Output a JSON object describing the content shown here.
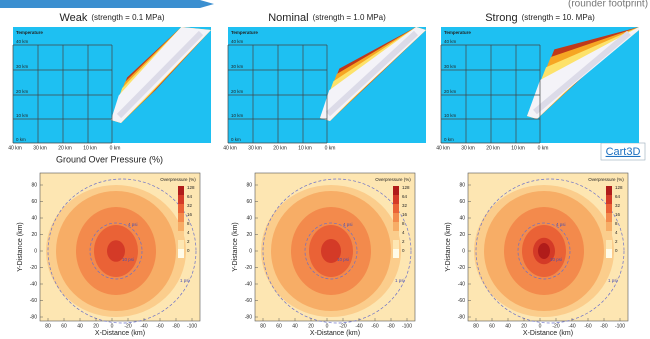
{
  "header": {
    "note": "(rounder footprint)"
  },
  "cases": [
    {
      "title": "Weak",
      "subtitle": "(strength = 0.1 MPa)"
    },
    {
      "title": "Nominal",
      "subtitle": "(strength = 1.0 MPa)"
    },
    {
      "title": "Strong",
      "subtitle": "(strength = 10. MPa)"
    }
  ],
  "temperature": {
    "label": "Temperature",
    "x_labels": [
      "40 km",
      "30 km",
      "20 km",
      "10 km",
      "0 km"
    ],
    "y_labels": [
      "40 km",
      "30 km",
      "20 km",
      "10 km",
      "0 km"
    ]
  },
  "source": "Cart3D",
  "section_title": "Ground Over Pressure (%)",
  "overpressure": {
    "legend_title": "Overpressure (%)",
    "legend_levels": [
      128,
      64,
      32,
      16,
      8,
      4,
      2,
      0
    ],
    "x_label": "X-Distance (km)",
    "y_label": "Y-Distance (km)",
    "x_ticks": [
      80,
      60,
      40,
      20,
      0,
      -20,
      -40,
      -60,
      -80,
      -100
    ],
    "y_ticks": [
      80,
      60,
      40,
      20,
      0,
      -20,
      -40,
      -60,
      -80
    ],
    "contour_labels": [
      "4 psi",
      "10 psi",
      "1 psi"
    ]
  }
}
